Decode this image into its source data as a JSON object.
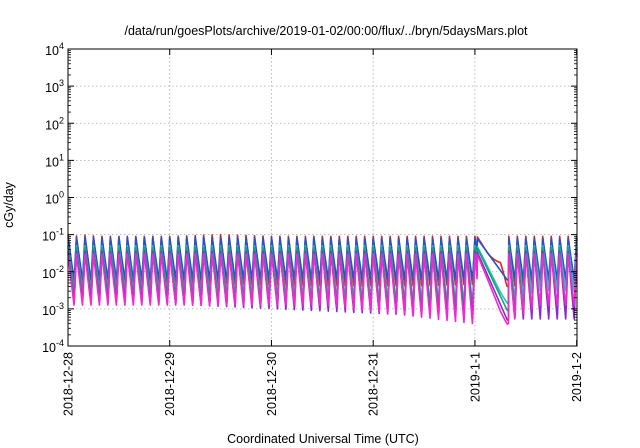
{
  "chart_data": {
    "type": "line",
    "title": "/data/run/goesPlots/archive/2019-01-02/00:00/flux/../bryn/5daysMars.plot",
    "xlabel": "Coordinated Universal Time (UTC)",
    "ylabel": "cGy/day",
    "y_scale": "log",
    "ylim": [
      0.0001,
      10000
    ],
    "y_ticks": [
      {
        "base": "10",
        "exp": "-4"
      },
      {
        "base": "10",
        "exp": "-3"
      },
      {
        "base": "10",
        "exp": "-2"
      },
      {
        "base": "10",
        "exp": "-1"
      },
      {
        "base": "10",
        "exp": "0"
      },
      {
        "base": "10",
        "exp": "1"
      },
      {
        "base": "10",
        "exp": "2"
      },
      {
        "base": "10",
        "exp": "3"
      },
      {
        "base": "10",
        "exp": "4"
      }
    ],
    "x_ticks": [
      "2018-12-28",
      "2018-12-29",
      "2018-12-30",
      "2018-12-31",
      "2019-1-1",
      "2019-1-2"
    ],
    "xlim": [
      "2018-12-28 00:00",
      "2019-01-02 00:05"
    ],
    "grid": true,
    "series": [
      {
        "color": "#e4202a",
        "peaks": [
          {
            "x": "2018-12-28 00:30",
            "y": 0.1
          },
          {
            "x": "2018-12-28 02:30",
            "y": 0.09
          },
          {
            "x": "2018-12-28 04:30",
            "y": 0.1
          },
          {
            "x": "2018-12-28 06:30",
            "y": 0.09
          },
          {
            "x": "2018-12-28 08:30",
            "y": 0.09
          },
          {
            "x": "2018-12-28 12:30",
            "y": 0.09
          },
          {
            "x": "2018-12-28 16:30",
            "y": 0.09
          },
          {
            "x": "2018-12-28 20:30",
            "y": 0.09
          },
          {
            "x": "2018-12-29 00:30",
            "y": 0.09
          },
          {
            "x": "2018-12-29 12:00",
            "y": 0.1
          },
          {
            "x": "2018-12-30 00:30",
            "y": 0.09
          },
          {
            "x": "2018-12-30 12:00",
            "y": 0.09
          },
          {
            "x": "2018-12-31 00:30",
            "y": 0.09
          },
          {
            "x": "2018-12-31 12:00",
            "y": 0.09
          },
          {
            "x": "2019-01-01 00:30",
            "y": 0.09
          },
          {
            "x": "2019-01-01 08:00",
            "y": 0.09
          },
          {
            "x": "2019-01-01 12:00",
            "y": 0.09
          },
          {
            "x": "2019-01-01 18:00",
            "y": 0.09
          },
          {
            "x": "2019-01-02 00:00",
            "y": 0.09
          }
        ],
        "troughs": [
          {
            "x": "2018-12-28 10:30",
            "y": 0.0045
          },
          {
            "x": "2018-12-28 22:30",
            "y": 0.004
          },
          {
            "x": "2018-12-29 12:30",
            "y": 0.0045
          },
          {
            "x": "2018-12-30 12:30",
            "y": 0.004
          },
          {
            "x": "2018-12-31 12:30",
            "y": 0.004
          },
          {
            "x": "2019-01-01 03:00",
            "y": 0.0045
          },
          {
            "x": "2019-01-01 06:00",
            "y": 0.011
          },
          {
            "x": "2019-01-01 07:30",
            "y": 0.004
          },
          {
            "x": "2019-01-01 15:00",
            "y": 0.004
          }
        ]
      },
      {
        "color": "#2255c8",
        "peaks": [
          {
            "x": "2018-12-28 00:30",
            "y": 0.085
          },
          {
            "x": "2018-12-29 12:00",
            "y": 0.085
          },
          {
            "x": "2018-12-31 00:30",
            "y": 0.08
          },
          {
            "x": "2019-01-01 00:30",
            "y": 0.08
          },
          {
            "x": "2019-01-02 00:00",
            "y": 0.08
          }
        ],
        "troughs": [
          {
            "x": "2018-12-28 10:30",
            "y": 0.006
          },
          {
            "x": "2018-12-30 12:30",
            "y": 0.006
          },
          {
            "x": "2019-01-01 06:00",
            "y": 0.006
          },
          {
            "x": "2019-01-01 15:00",
            "y": 0.006
          }
        ]
      },
      {
        "color": "#25c2c2",
        "peaks": [
          {
            "x": "2018-12-28 00:30",
            "y": 0.05
          },
          {
            "x": "2018-12-30 00:30",
            "y": 0.05
          },
          {
            "x": "2019-01-02 00:00",
            "y": 0.05
          }
        ],
        "troughs": [
          {
            "x": "2018-12-28 10:30",
            "y": 0.003
          },
          {
            "x": "2019-01-01 06:00",
            "y": 0.0012
          },
          {
            "x": "2019-01-01 15:00",
            "y": 0.003
          }
        ]
      },
      {
        "color": "#18a56a",
        "peaks": [
          {
            "x": "2018-12-28 00:30",
            "y": 0.045
          },
          {
            "x": "2019-01-02 00:00",
            "y": 0.045
          }
        ],
        "troughs": [
          {
            "x": "2018-12-28 10:30",
            "y": 0.0025
          },
          {
            "x": "2019-01-01 06:00",
            "y": 0.0009
          }
        ]
      },
      {
        "color": "#8b2ad0",
        "peaks": [
          {
            "x": "2018-12-28 00:30",
            "y": 0.035
          },
          {
            "x": "2019-01-02 00:00",
            "y": 0.035
          }
        ],
        "troughs": [
          {
            "x": "2018-12-28 10:30",
            "y": 0.0015
          },
          {
            "x": "2019-01-01 06:00",
            "y": 0.0005
          }
        ]
      },
      {
        "color": "#f02ad0",
        "peaks": [
          {
            "x": "2018-12-28 00:30",
            "y": 0.03
          },
          {
            "x": "2018-12-29 12:00",
            "y": 0.03
          },
          {
            "x": "2019-01-02 00:00",
            "y": 0.03
          }
        ],
        "troughs": [
          {
            "x": "2018-12-28 10:30",
            "y": 0.0012
          },
          {
            "x": "2018-12-30 12:30",
            "y": 0.0012
          },
          {
            "x": "2019-01-01 06:00",
            "y": 0.0003
          },
          {
            "x": "2019-01-01 15:00",
            "y": 0.0012
          }
        ]
      }
    ]
  }
}
